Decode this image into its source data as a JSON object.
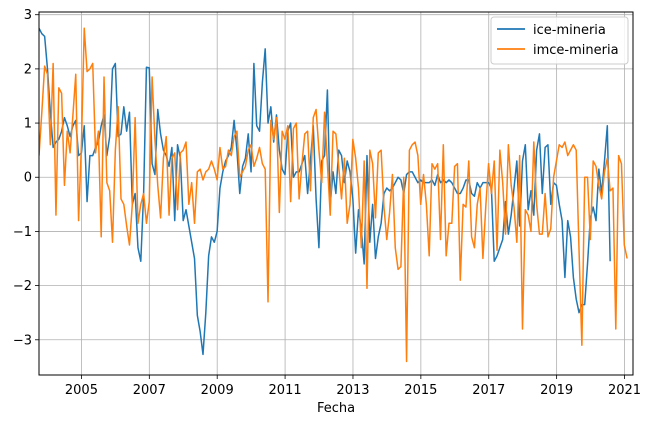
{
  "chart_data": {
    "type": "line",
    "xlabel": "Fecha",
    "ylabel": "",
    "xlim": [
      2003.75,
      2021.25
    ],
    "ylim": [
      -3.65,
      3.05
    ],
    "x_ticks": [
      2005,
      2007,
      2009,
      2011,
      2013,
      2015,
      2017,
      2019,
      2021
    ],
    "y_ticks": [
      -3,
      -2,
      -1,
      0,
      1,
      2,
      3
    ],
    "grid": true,
    "legend": "top-right",
    "x_start": 2003.75,
    "x_step": 0.0833,
    "series": [
      {
        "name": "ice-mineria",
        "color": "#1f77b4",
        "values": [
          2.75,
          2.65,
          2.6,
          2.0,
          1.2,
          0.55,
          0.65,
          0.7,
          0.85,
          1.1,
          0.95,
          0.75,
          0.95,
          1.05,
          0.4,
          0.45,
          0.95,
          -0.45,
          0.4,
          0.4,
          0.55,
          0.65,
          0.95,
          1.15,
          0.4,
          0.75,
          2.0,
          2.1,
          0.75,
          0.8,
          1.3,
          0.85,
          1.2,
          -0.5,
          -0.3,
          -1.3,
          -1.55,
          -0.3,
          2.03,
          2.02,
          0.25,
          0.05,
          1.25,
          0.8,
          0.5,
          0.4,
          0.2,
          0.55,
          -0.8,
          0.6,
          0.35,
          -0.8,
          -0.6,
          -0.9,
          -1.2,
          -1.5,
          -2.55,
          -2.85,
          -3.27,
          -2.5,
          -1.45,
          -1.1,
          -1.2,
          -1.0,
          -0.2,
          0.1,
          0.3,
          0.4,
          0.55,
          1.05,
          0.5,
          -0.3,
          0.2,
          0.35,
          0.8,
          0.1,
          2.1,
          0.95,
          0.85,
          1.75,
          2.37,
          1.0,
          1.3,
          0.65,
          1.15,
          0.5,
          0.15,
          0.05,
          0.85,
          1.0,
          0.0,
          0.1,
          0.1,
          0.25,
          0.4,
          -0.3,
          0.3,
          0.95,
          -0.4,
          -1.3,
          0.3,
          0.4,
          1.61,
          -0.5,
          0.1,
          -0.3,
          0.5,
          0.4,
          -0.1,
          0.3,
          0.1,
          -0.4,
          -1.4,
          -0.6,
          -0.95,
          -1.6,
          0.4,
          -1.2,
          -0.5,
          -1.5,
          -1.1,
          -0.85,
          -0.3,
          -0.2,
          -0.25,
          -0.2,
          -0.1,
          0.0,
          -0.05,
          -0.3,
          0.05,
          0.1,
          0.1,
          0.0,
          -0.1,
          -0.05,
          -0.1,
          -0.1,
          -0.1,
          -0.05,
          -0.15,
          0.05,
          -0.1,
          -0.05,
          -0.1,
          -0.05,
          -0.1,
          -0.2,
          -0.3,
          -0.3,
          -0.2,
          -0.05,
          -0.05,
          -0.3,
          -0.35,
          -0.1,
          -0.2,
          -0.1,
          -0.1,
          -0.1,
          -0.2,
          -1.55,
          -1.45,
          -1.3,
          -1.15,
          -0.45,
          -1.05,
          -0.7,
          -0.2,
          0.3,
          -0.9,
          0.3,
          0.6,
          -0.6,
          -0.25,
          -0.7,
          0.5,
          0.8,
          -0.3,
          0.55,
          0.6,
          -0.5,
          -0.1,
          -0.15,
          -0.5,
          -0.8,
          -1.85,
          -0.8,
          -1.1,
          -1.85,
          -2.25,
          -2.5,
          -2.35,
          -2.35,
          -1.6,
          -0.75,
          -0.55,
          -0.8,
          0.15,
          -0.3,
          0.3,
          0.95,
          -1.55
        ]
      },
      {
        "name": "imce-mineria",
        "color": "#ff7f0e",
        "values": [
          0.4,
          1.2,
          2.05,
          1.9,
          0.6,
          2.1,
          -0.7,
          1.65,
          1.55,
          -0.15,
          0.85,
          0.45,
          1.15,
          1.9,
          -0.8,
          0.6,
          2.75,
          1.95,
          2.0,
          2.1,
          0.45,
          0.85,
          -1.1,
          1.85,
          -0.1,
          -0.25,
          -1.2,
          0.5,
          1.3,
          -0.4,
          -0.5,
          -0.9,
          -1.25,
          -0.5,
          1.1,
          -0.85,
          -0.5,
          -0.3,
          -0.85,
          -0.45,
          1.85,
          0.7,
          -0.15,
          -0.75,
          0.35,
          0.75,
          -0.7,
          0.35,
          0.45,
          -0.6,
          0.45,
          0.5,
          0.65,
          -0.5,
          -0.1,
          -0.85,
          0.1,
          0.15,
          -0.05,
          0.1,
          0.15,
          0.3,
          0.15,
          -0.05,
          0.55,
          0.15,
          0.2,
          0.5,
          0.4,
          0.75,
          0.85,
          0.0,
          0.1,
          0.2,
          0.5,
          0.6,
          0.2,
          0.35,
          0.55,
          0.25,
          0.15,
          -2.3,
          1.05,
          0.7,
          1.1,
          -0.65,
          0.85,
          0.7,
          0.95,
          -0.45,
          0.9,
          1.0,
          -0.4,
          0.25,
          0.8,
          0.85,
          -0.25,
          1.1,
          1.25,
          0.5,
          -0.1,
          1.2,
          0.25,
          -0.7,
          0.85,
          0.8,
          0.2,
          -0.4,
          0.35,
          -0.85,
          -0.5,
          0.7,
          0.35,
          -0.2,
          -1.3,
          0.3,
          -2.05,
          0.5,
          0.25,
          -0.75,
          0.45,
          0.5,
          -0.55,
          -1.15,
          -0.65,
          0.05,
          -1.3,
          -1.7,
          -1.65,
          0.0,
          -3.4,
          0.5,
          0.6,
          0.65,
          0.4,
          -0.5,
          0.05,
          -0.5,
          -1.45,
          0.25,
          0.15,
          0.25,
          -1.15,
          0.6,
          -1.45,
          -0.85,
          -0.85,
          0.2,
          0.25,
          -1.9,
          -0.5,
          -0.55,
          0.3,
          -1.1,
          -1.3,
          -0.5,
          -0.2,
          -1.5,
          -0.55,
          0.25,
          -0.3,
          0.3,
          -1.35,
          0.5,
          -0.1,
          -1.05,
          0.6,
          -0.15,
          -0.55,
          -1.2,
          0.4,
          -2.8,
          -0.6,
          -0.7,
          -1.0,
          0.65,
          -0.5,
          -1.05,
          -1.05,
          -0.3,
          -1.1,
          -0.95,
          0.0,
          0.3,
          0.6,
          0.55,
          0.65,
          0.4,
          0.5,
          0.6,
          0.5,
          -1.35,
          -3.1,
          0.0,
          0.0,
          -1.15,
          0.3,
          0.2,
          -0.15,
          -0.4,
          0.1,
          0.35,
          -0.25,
          -0.2,
          -2.8,
          0.4,
          0.25,
          -1.25,
          -1.5
        ]
      }
    ]
  }
}
